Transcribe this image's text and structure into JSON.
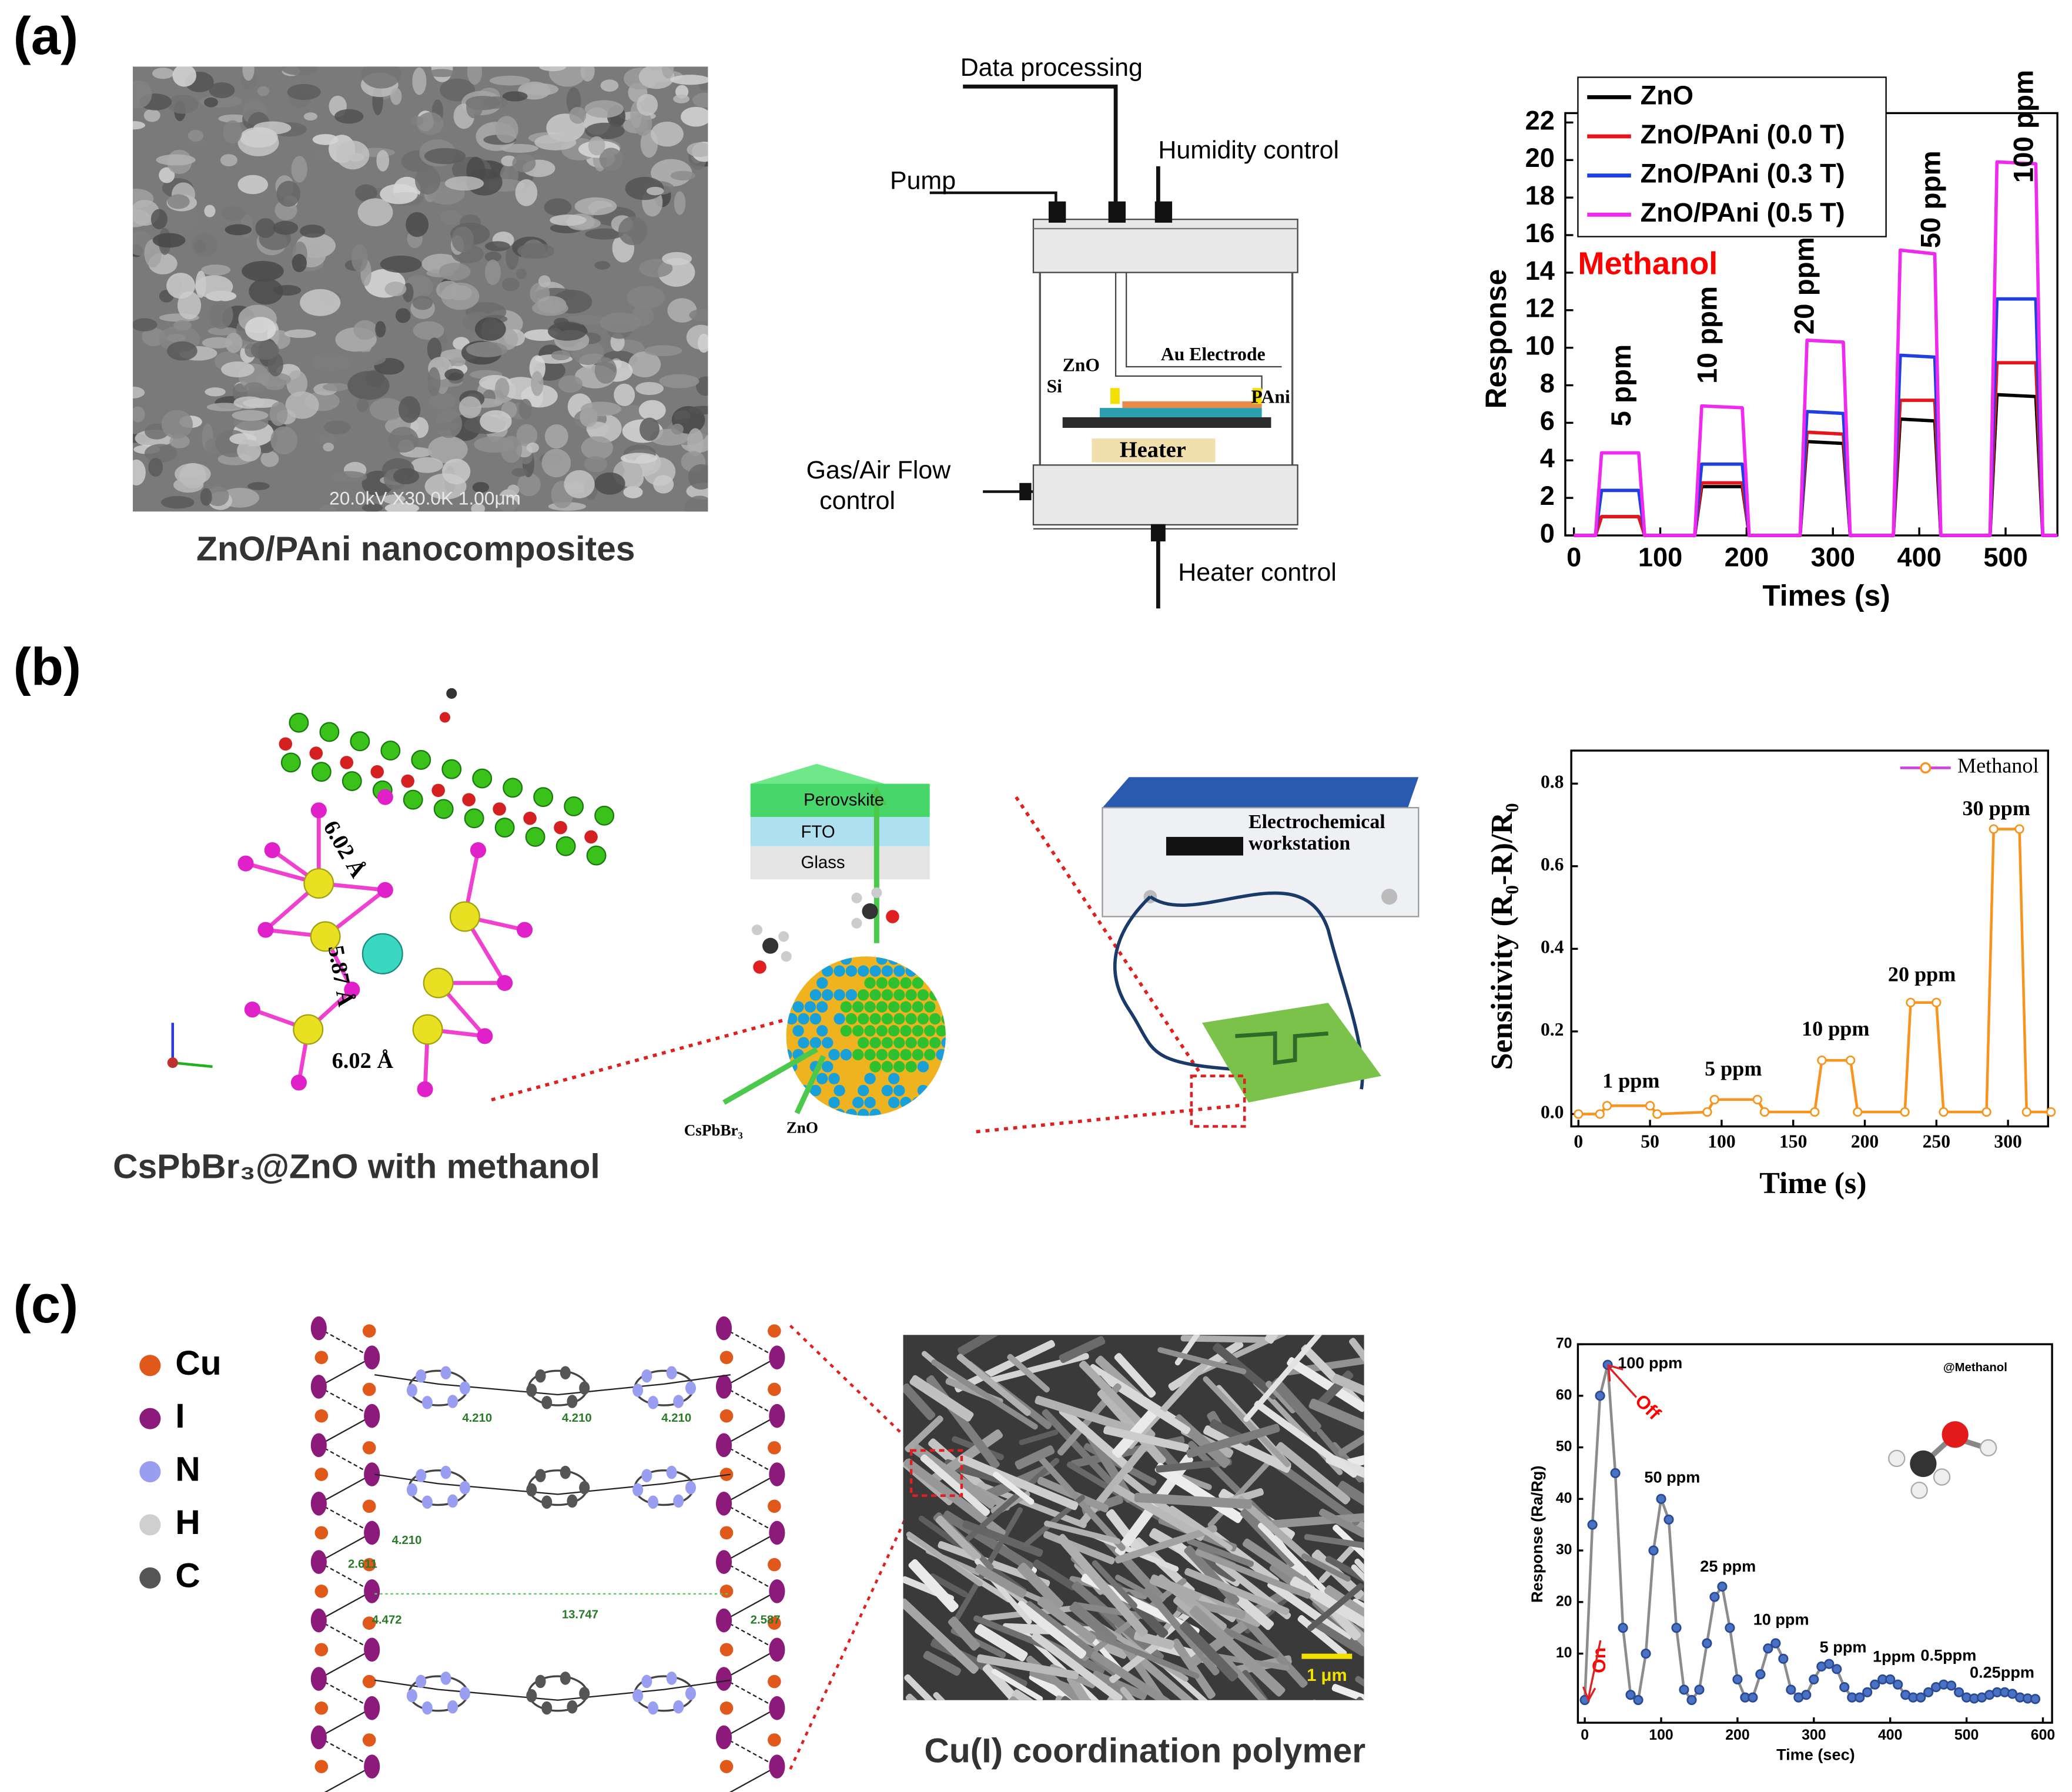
{
  "panels": [
    {
      "label": "(a)",
      "caption": "ZnO/PAni nanocomposites",
      "sem_label": "20.0kV X30.0K 1.00μm",
      "setup_labels": [
        "Data processing",
        "Pump",
        "Humidity control",
        "Au Electrode",
        "ZnO",
        "Si",
        "PAni",
        "Heater",
        "Gas/Air Flow",
        "control",
        "Heater control"
      ]
    },
    {
      "label": "(b)",
      "caption": "CsPbBr₃@ZnO with methanol",
      "structure_labels": [
        "6.02 Å",
        "5.87 Å",
        "6.02 Å"
      ],
      "device_labels": [
        "Perovskite",
        "FTO",
        "Glass",
        "CsPbBr₃",
        "ZnO",
        "Electrochemical",
        "workstation"
      ]
    },
    {
      "label": "(c)",
      "caption": "Cu(I) coordination polymer",
      "element_legend": [
        {
          "name": "Cu",
          "color": "#e0581a"
        },
        {
          "name": "I",
          "color": "#8b1a7a"
        },
        {
          "name": "N",
          "color": "#9a9ef0"
        },
        {
          "name": "H",
          "color": "#cfcfcf"
        },
        {
          "name": "C",
          "color": "#555555"
        }
      ],
      "distance_labels": [
        "4.210",
        "4.210",
        "4.210",
        "4.210",
        "2.611",
        "4.472",
        "13.747",
        "2.587"
      ],
      "scale_bar": "1 μm"
    }
  ],
  "chart_data": [
    {
      "type": "line",
      "ylabel": "Response",
      "xlabel": "Times (s)",
      "annotations": [
        "Methanol",
        "5 ppm",
        "10 ppm",
        "20 ppm",
        "50 ppm",
        "100 ppm"
      ],
      "x": [
        0,
        25,
        32,
        75,
        82,
        140,
        148,
        195,
        203,
        262,
        270,
        312,
        320,
        370,
        378,
        418,
        425,
        482,
        490,
        535,
        543,
        560
      ],
      "series": [
        {
          "name": "ZnO",
          "color": "#000000",
          "values": [
            0,
            0,
            1,
            1,
            0,
            0,
            2.6,
            2.6,
            0,
            0,
            5,
            4.9,
            0,
            0,
            6.2,
            6.1,
            0,
            0,
            7.5,
            7.4,
            0,
            0
          ]
        },
        {
          "name": "ZnO/PAni (0.0 T)",
          "color": "#e8141c",
          "values": [
            0,
            0,
            1,
            1,
            0,
            0,
            2.8,
            2.8,
            0,
            0,
            5.5,
            5.4,
            0,
            0,
            7.2,
            7.2,
            0,
            0,
            9.2,
            9.2,
            0,
            0
          ]
        },
        {
          "name": "ZnO/PAni (0.3 T)",
          "color": "#1f3fe0",
          "values": [
            0,
            0,
            2.4,
            2.4,
            0,
            0,
            3.8,
            3.8,
            0,
            0,
            6.6,
            6.5,
            0,
            0,
            9.6,
            9.5,
            0,
            0,
            12.6,
            12.6,
            0,
            0
          ]
        },
        {
          "name": "ZnO/PAni (0.5 T)",
          "color": "#f028f0",
          "values": [
            0,
            0,
            4.4,
            4.4,
            0,
            0,
            6.9,
            6.8,
            0,
            0,
            10.4,
            10.3,
            0,
            0,
            15.2,
            15,
            0,
            0,
            19.9,
            19.8,
            0,
            0
          ]
        }
      ],
      "xlim": [
        -10,
        560
      ],
      "xticks": [
        0,
        100,
        200,
        300,
        400,
        500
      ],
      "ylim": [
        0,
        22.5
      ],
      "yticks": [
        0,
        2,
        4,
        6,
        8,
        10,
        12,
        14,
        16,
        18,
        20,
        22
      ],
      "legend": "upper left"
    },
    {
      "type": "line",
      "ylabel": "Sensitivity (R₀-R)/R₀",
      "xlabel": "Time (s)",
      "annotations": [
        "1 ppm",
        "5 ppm",
        "10 ppm",
        "20 ppm",
        "30 ppm"
      ],
      "x": [
        0,
        15,
        20,
        50,
        55,
        90,
        95,
        125,
        130,
        165,
        170,
        190,
        195,
        228,
        232,
        250,
        255,
        285,
        290,
        308,
        313,
        330
      ],
      "series": [
        {
          "name": "Methanol",
          "color": "#f7941d",
          "values": [
            0,
            0,
            0.02,
            0.02,
            0,
            0.005,
            0.035,
            0.035,
            0.005,
            0.005,
            0.13,
            0.13,
            0.005,
            0.005,
            0.27,
            0.27,
            0.005,
            0.005,
            0.69,
            0.69,
            0.005,
            0.005
          ]
        }
      ],
      "marker": "circle",
      "xlim": [
        -5,
        328
      ],
      "xticks": [
        0,
        50,
        100,
        150,
        200,
        250,
        300
      ],
      "ylim": [
        -0.03,
        0.88
      ],
      "yticks": [
        {
          "value": 0,
          "label": "0.0"
        },
        0.2,
        0.4,
        0.6,
        0.8
      ],
      "legend": "upper right"
    },
    {
      "type": "line",
      "ylabel": "Response (Ra/Rg)",
      "xlabel": "Time (sec)",
      "annotations": [
        "100 ppm",
        "50 ppm",
        "25 ppm",
        "10 ppm",
        "5 ppm",
        "1ppm",
        "0.5ppm",
        "0.25ppm",
        "@Methanol",
        "On",
        "Off"
      ],
      "x": [
        0,
        10,
        20,
        30,
        40,
        50,
        60,
        70,
        80,
        90,
        100,
        110,
        120,
        130,
        140,
        150,
        160,
        170,
        180,
        190,
        200,
        210,
        220,
        230,
        240,
        250,
        260,
        270,
        280,
        290,
        300,
        310,
        320,
        330,
        340,
        350,
        360,
        370,
        380,
        390,
        400,
        410,
        420,
        430,
        440,
        450,
        460,
        470,
        480,
        490,
        500,
        510,
        520,
        530,
        540,
        550,
        560,
        570,
        580,
        590
      ],
      "series": [
        {
          "color": "#4a72c4",
          "line_color": "#8c8c8c",
          "values": [
            1,
            35,
            60,
            66,
            45,
            15,
            2,
            1,
            10,
            30,
            40,
            36,
            15,
            3,
            1,
            3,
            12,
            21,
            23,
            15,
            5,
            1.5,
            1.5,
            6,
            11,
            12,
            9,
            3,
            1.5,
            2,
            5,
            7.5,
            8,
            7,
            3.5,
            1.5,
            1.5,
            2.5,
            4,
            5,
            5,
            4,
            2,
            1.5,
            1.5,
            2.5,
            3.5,
            4,
            3.8,
            2.5,
            1.5,
            1.3,
            1.5,
            2,
            2.5,
            2.5,
            2.2,
            1.5,
            1.3,
            1.2
          ]
        }
      ],
      "marker": "circle",
      "xlim": [
        -9,
        612
      ],
      "xticks": [
        0,
        100,
        200,
        300,
        400,
        500,
        600
      ],
      "ylim": [
        -3.4,
        70
      ],
      "yticks": [
        10,
        20,
        30,
        40,
        50,
        60,
        70
      ]
    }
  ]
}
